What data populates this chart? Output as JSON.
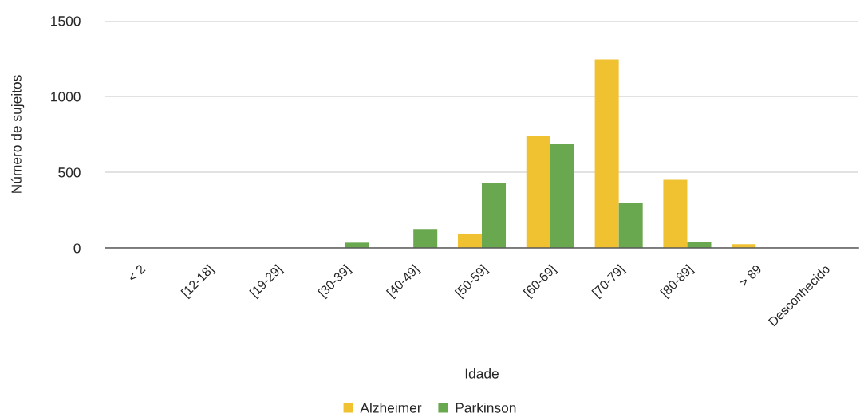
{
  "chart_data": {
    "type": "bar",
    "xlabel": "Idade",
    "ylabel": "Número de sujeitos",
    "categories": [
      "< 2",
      "[12-18]",
      "[19-29]",
      "[30-39]",
      "[40-49]",
      "[50-59]",
      "[60-69]",
      "[70-79]",
      "[80-89]",
      "> 89",
      "Desconhecido"
    ],
    "series": [
      {
        "name": "Alzheimer",
        "color": "#f0c232",
        "values": [
          0,
          0,
          0,
          0,
          0,
          95,
          740,
          1245,
          450,
          25,
          0
        ]
      },
      {
        "name": "Parkinson",
        "color": "#6aa84f",
        "values": [
          0,
          0,
          0,
          35,
          125,
          430,
          685,
          300,
          40,
          0,
          0
        ]
      }
    ],
    "ylim": [
      0,
      1500
    ],
    "yticks": [
      0,
      500,
      1000,
      1500
    ],
    "grid": "y",
    "legend": "bottom"
  }
}
